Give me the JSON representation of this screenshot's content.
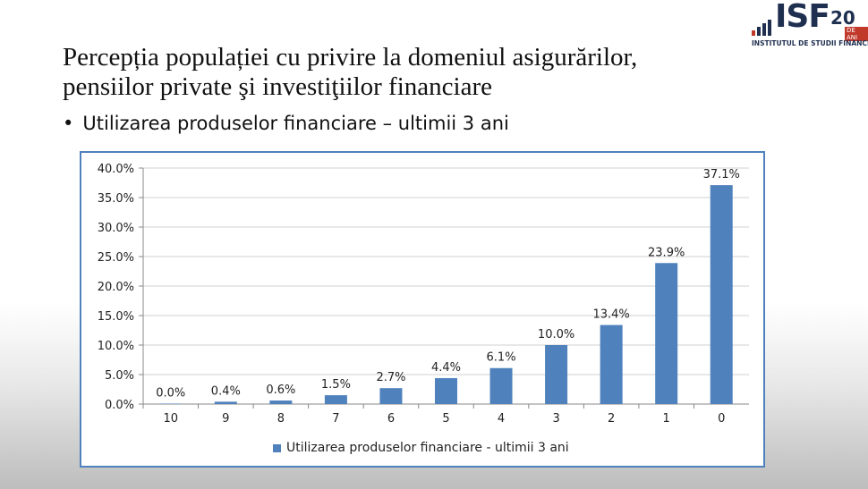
{
  "slide": {
    "title_line1": "Percepția populației cu privire la domeniul asigurărilor,",
    "title_line2": "pensiilor private şi investiţiilor financiare",
    "bullet_char": "•",
    "bullet_text": "Utilizarea produselor financiare – ultimii 3 ani"
  },
  "logo": {
    "mark": "ISF",
    "number": "20",
    "badge": "DE ANI",
    "subtitle": "INSTITUTUL DE STUDII FINANCIARE",
    "color": "#1f2f4f",
    "icon": "bar-chart-icon"
  },
  "colors": {
    "bar": "#4f81bd",
    "border": "#4f81bd",
    "grid": "#d0d0d0"
  },
  "chart_data": {
    "type": "bar",
    "categories": [
      "10",
      "9",
      "8",
      "7",
      "6",
      "5",
      "4",
      "3",
      "2",
      "1",
      "0"
    ],
    "series": [
      {
        "name": "Utilizarea produselor financiare - ultimii 3 ani",
        "values": [
          0.0,
          0.4,
          0.6,
          1.5,
          2.7,
          4.4,
          6.1,
          10.0,
          13.4,
          23.9,
          37.1
        ],
        "labels": [
          "0.0%",
          "0.4%",
          "0.6%",
          "1.5%",
          "2.7%",
          "4.4%",
          "6.1%",
          "10.0%",
          "13.4%",
          "23.9%",
          "37.1%"
        ]
      }
    ],
    "ylim": [
      0,
      40
    ],
    "yticks": [
      "0.0%",
      "5.0%",
      "10.0%",
      "15.0%",
      "20.0%",
      "25.0%",
      "30.0%",
      "35.0%",
      "40.0%"
    ],
    "title": "",
    "xlabel": "",
    "ylabel": "",
    "grid": true,
    "legend_position": "bottom"
  }
}
